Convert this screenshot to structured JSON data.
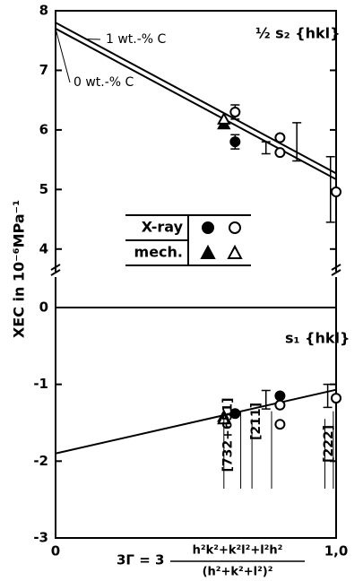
{
  "y_label": "XEC in 10⁻⁶MPa⁻¹",
  "x_label": {
    "lhs": "3Γ = 3",
    "numerator": "h²k²+k²l²+l²h²",
    "denominator": "(h²+k²+l²)²"
  },
  "chart_data": [
    {
      "type": "scatter",
      "panel_label": "½ s₂ {hkl}",
      "xlim": [
        0,
        1
      ],
      "ylim": [
        3.5,
        8
      ],
      "yticks": [
        4,
        5,
        6,
        7,
        8
      ],
      "legend": {
        "rows": [
          "X-ray",
          "mech."
        ]
      },
      "lines": [
        {
          "name": "1 wt.-% C",
          "x": [
            0,
            1
          ],
          "values": [
            7.8,
            5.27
          ]
        },
        {
          "name": "0 wt.-% C",
          "x": [
            0,
            1
          ],
          "values": [
            7.7,
            5.17
          ]
        }
      ],
      "series": [
        {
          "marker": "circle",
          "filled": true,
          "color": "#000",
          "x": [
            0.64
          ],
          "values": [
            5.8
          ]
        },
        {
          "marker": "circle",
          "filled": false,
          "color": "#000",
          "x": [
            0.64,
            0.8,
            0.8,
            1.0
          ],
          "values": [
            6.3,
            5.87,
            5.62,
            4.96
          ]
        },
        {
          "marker": "triangle",
          "filled": true,
          "color": "#000",
          "x": [
            0.6
          ],
          "values": [
            6.1
          ]
        },
        {
          "marker": "triangle",
          "filled": false,
          "color": "#000",
          "x": [
            0.6
          ],
          "values": [
            6.18
          ]
        }
      ],
      "error_bars": {
        "x": [
          0.64,
          0.64,
          0.75,
          0.86,
          0.98
        ],
        "values": [
          6.3,
          5.8,
          5.7,
          5.8,
          5.0
        ],
        "errors": [
          0.12,
          0.12,
          0.1,
          0.32,
          0.55
        ]
      }
    },
    {
      "type": "scatter",
      "panel_label": "s₁ {hkl}",
      "xlim": [
        0,
        1
      ],
      "ylim": [
        -3,
        0
      ],
      "yticks": [
        0,
        -1,
        -2,
        -3
      ],
      "xticks": [
        0,
        {
          "value": 1,
          "label": "1,0"
        }
      ],
      "lines": [
        {
          "x": [
            0,
            1
          ],
          "values": [
            -1.9,
            -1.07
          ]
        }
      ],
      "series": [
        {
          "marker": "circle",
          "filled": true,
          "color": "#000",
          "x": [
            0.64,
            0.8
          ],
          "values": [
            -1.38,
            -1.15
          ]
        },
        {
          "marker": "circle",
          "filled": false,
          "color": "#000",
          "x": [
            0.8,
            0.8,
            1.0
          ],
          "values": [
            -1.27,
            -1.52,
            -1.18
          ]
        },
        {
          "marker": "triangle",
          "filled": true,
          "color": "#000",
          "x": [
            0.6
          ],
          "values": [
            -1.42
          ]
        },
        {
          "marker": "triangle",
          "filled": false,
          "color": "#000",
          "x": [
            0.6
          ],
          "values": [
            -1.45
          ]
        }
      ],
      "error_bars": {
        "x": [
          0.75,
          0.97
        ],
        "values": [
          -1.2,
          -1.15
        ],
        "errors": [
          0.12,
          0.15
        ]
      },
      "annotations": [
        "[732+651]",
        "[211]",
        "[222]"
      ]
    }
  ]
}
